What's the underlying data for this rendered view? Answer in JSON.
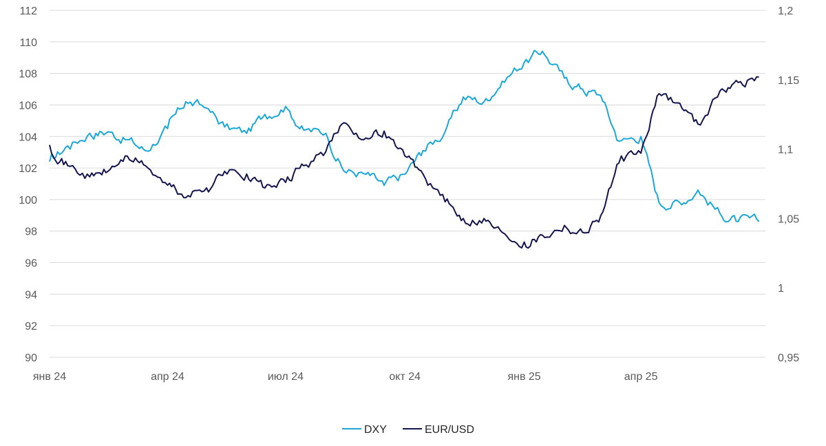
{
  "chart_data": {
    "type": "line",
    "title": "",
    "xlabel": "",
    "ylabel": "",
    "ylim": [
      90,
      112
    ],
    "y2lim": [
      0.95,
      1.2
    ],
    "grid": true,
    "legend_position": "bottom",
    "x_ticks": [
      "янв 24",
      "апр 24",
      "июл 24",
      "окт 24",
      "янв 25",
      "апр 25"
    ],
    "y_ticks": [
      "90",
      "92",
      "94",
      "96",
      "98",
      "100",
      "102",
      "104",
      "106",
      "108",
      "110",
      "112"
    ],
    "y2_ticks": [
      "0,95",
      "1",
      "1,05",
      "1,1",
      "1,15",
      "1,2"
    ],
    "x": [
      "2024-01-01",
      "2024-01-15",
      "2024-02-01",
      "2024-02-15",
      "2024-03-01",
      "2024-03-15",
      "2024-04-01",
      "2024-04-15",
      "2024-05-01",
      "2024-05-15",
      "2024-06-01",
      "2024-06-15",
      "2024-07-01",
      "2024-07-15",
      "2024-08-01",
      "2024-08-15",
      "2024-09-01",
      "2024-09-15",
      "2024-10-01",
      "2024-10-15",
      "2024-11-01",
      "2024-11-15",
      "2024-12-01",
      "2024-12-15",
      "2025-01-01",
      "2025-01-15",
      "2025-02-01",
      "2025-02-15",
      "2025-03-01",
      "2025-03-15",
      "2025-04-01",
      "2025-04-15",
      "2025-05-01",
      "2025-05-15",
      "2025-06-01",
      "2025-06-15",
      "2025-07-01"
    ],
    "series": [
      {
        "name": "DXY",
        "axis": "left",
        "color": "#1aa7d8",
        "values": [
          102.4,
          103.4,
          104.2,
          104.3,
          103.8,
          103.1,
          104.5,
          106.2,
          105.8,
          104.6,
          104.2,
          105.4,
          105.9,
          104.4,
          104.2,
          101.8,
          101.6,
          100.9,
          101.6,
          103.1,
          104.3,
          106.5,
          106.2,
          107.5,
          108.7,
          109.4,
          107.7,
          107.0,
          106.6,
          103.7,
          104.0,
          99.8,
          99.8,
          100.6,
          99.1,
          98.6,
          98.6
        ]
      },
      {
        "name": "EUR/USD",
        "axis": "right",
        "color": "#13134d",
        "values": [
          1.103,
          1.088,
          1.08,
          1.084,
          1.095,
          1.088,
          1.074,
          1.065,
          1.072,
          1.084,
          1.082,
          1.072,
          1.076,
          1.088,
          1.098,
          1.119,
          1.108,
          1.113,
          1.095,
          1.082,
          1.062,
          1.05,
          1.05,
          1.04,
          1.033,
          1.038,
          1.045,
          1.04,
          1.052,
          1.09,
          1.097,
          1.14,
          1.133,
          1.118,
          1.142,
          1.148,
          1.152
        ]
      }
    ]
  }
}
